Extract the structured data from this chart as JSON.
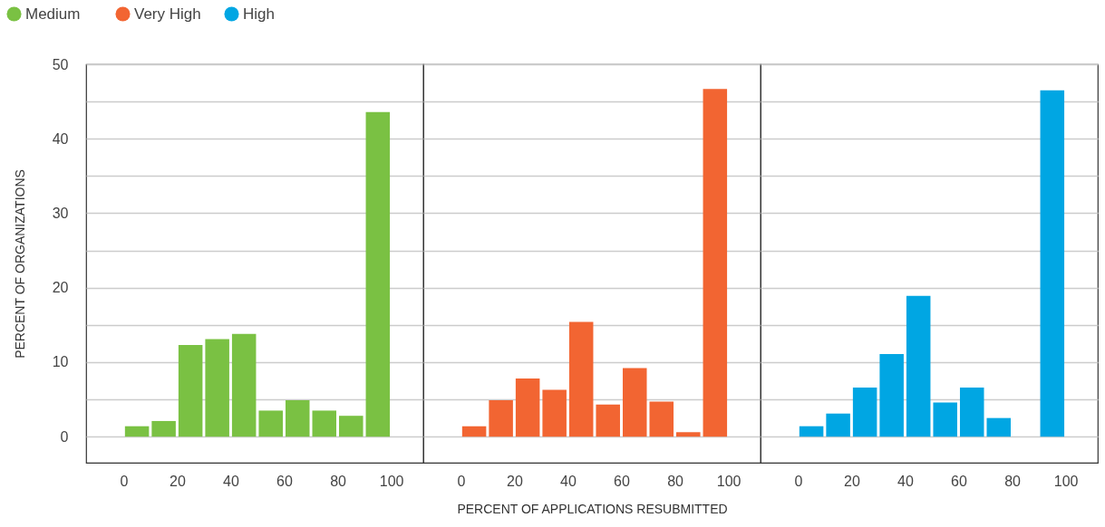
{
  "chart_data": [
    {
      "type": "histogram",
      "ylabel": "PERCENT OF ORGANIZATIONS",
      "bins": [
        0,
        10,
        20,
        30,
        40,
        50,
        60,
        70,
        80,
        90,
        100
      ],
      "xlim": [
        -14,
        112
      ],
      "xticks": [
        0,
        20,
        40,
        60,
        80,
        100
      ],
      "ylim": [
        -3.5,
        50
      ],
      "yticks": [
        0,
        {
          "value": 5,
          "label": null
        },
        10,
        {
          "value": 15,
          "label": null
        },
        20,
        {
          "value": 25,
          "label": null
        },
        30,
        {
          "value": 35,
          "label": null
        },
        40,
        {
          "value": 45,
          "label": null
        },
        50
      ],
      "grid": "y",
      "legend": "top left",
      "series": [
        {
          "name": "Medium",
          "color": "#7ac143",
          "values": [
            1.4,
            2.1,
            12.3,
            13.1,
            13.8,
            3.5,
            4.9,
            3.5,
            2.8,
            43.6
          ]
        }
      ]
    },
    {
      "type": "histogram",
      "xlabel": "PERCENT OF APPLICATIONS RESUBMITTED",
      "bins": [
        0,
        10,
        20,
        30,
        40,
        50,
        60,
        70,
        80,
        90,
        100
      ],
      "xlim": [
        -14,
        112
      ],
      "xticks": [
        0,
        20,
        40,
        60,
        80,
        100
      ],
      "ylim": [
        -3.5,
        50
      ],
      "yticks": [
        0,
        {
          "value": 5,
          "label": null
        },
        10,
        {
          "value": 15,
          "label": null
        },
        20,
        {
          "value": 25,
          "label": null
        },
        30,
        {
          "value": 35,
          "label": null
        },
        40,
        {
          "value": 45,
          "label": null
        },
        50
      ],
      "grid": "y",
      "tick_labels": "x",
      "legend": "top left",
      "series": [
        {
          "name": "Very High",
          "color": "#f26532",
          "values": [
            1.4,
            4.9,
            7.8,
            6.3,
            15.4,
            4.3,
            9.2,
            4.7,
            0.6,
            46.7
          ]
        }
      ]
    },
    {
      "type": "histogram",
      "bins": [
        0,
        10,
        20,
        30,
        40,
        50,
        60,
        70,
        80,
        90,
        100
      ],
      "xlim": [
        -14,
        112
      ],
      "xticks": [
        0,
        20,
        40,
        60,
        80,
        100
      ],
      "ylim": [
        -3.5,
        50
      ],
      "yticks": [
        0,
        {
          "value": 5,
          "label": null
        },
        10,
        {
          "value": 15,
          "label": null
        },
        20,
        {
          "value": 25,
          "label": null
        },
        30,
        {
          "value": 35,
          "label": null
        },
        40,
        {
          "value": 45,
          "label": null
        },
        50
      ],
      "grid": "y",
      "tick_labels": "x",
      "legend": "top left",
      "series": [
        {
          "name": "High",
          "color": "#00a6e3",
          "values": [
            1.4,
            3.1,
            6.6,
            11.1,
            18.9,
            4.6,
            6.6,
            2.5,
            0,
            46.5
          ]
        }
      ]
    }
  ]
}
